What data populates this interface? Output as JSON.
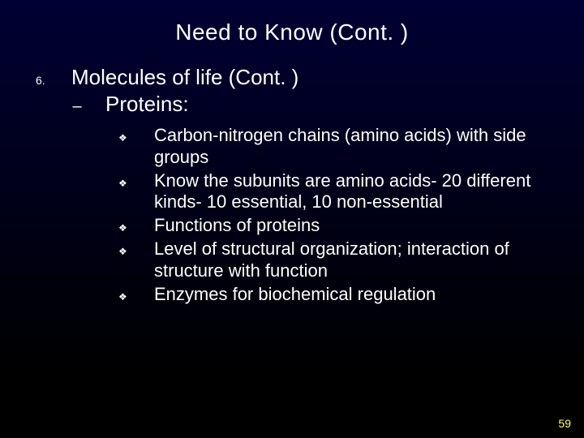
{
  "background": {
    "gradient_top": "#000033",
    "gradient_bottom": "#000000"
  },
  "title": "Need to Know (Cont. )",
  "list_number": "6.",
  "level1": "Molecules of life (Cont. )",
  "level2_marker": "–",
  "level2": "Proteins:",
  "bullet_marker": "❖",
  "bullets": [
    "Carbon-nitrogen chains (amino acids) with side groups",
    "Know the subunits are amino acids- 20 different kinds- 10 essential, 10 non-essential",
    "Functions of proteins",
    "Level of structural organization; interaction of structure with function",
    "Enzymes for biochemical regulation"
  ],
  "page_number": "59",
  "text_color": "#ffffff",
  "page_number_color": "#ffff66",
  "title_fontsize": 28,
  "level1_fontsize": 26,
  "level3_fontsize": 22
}
